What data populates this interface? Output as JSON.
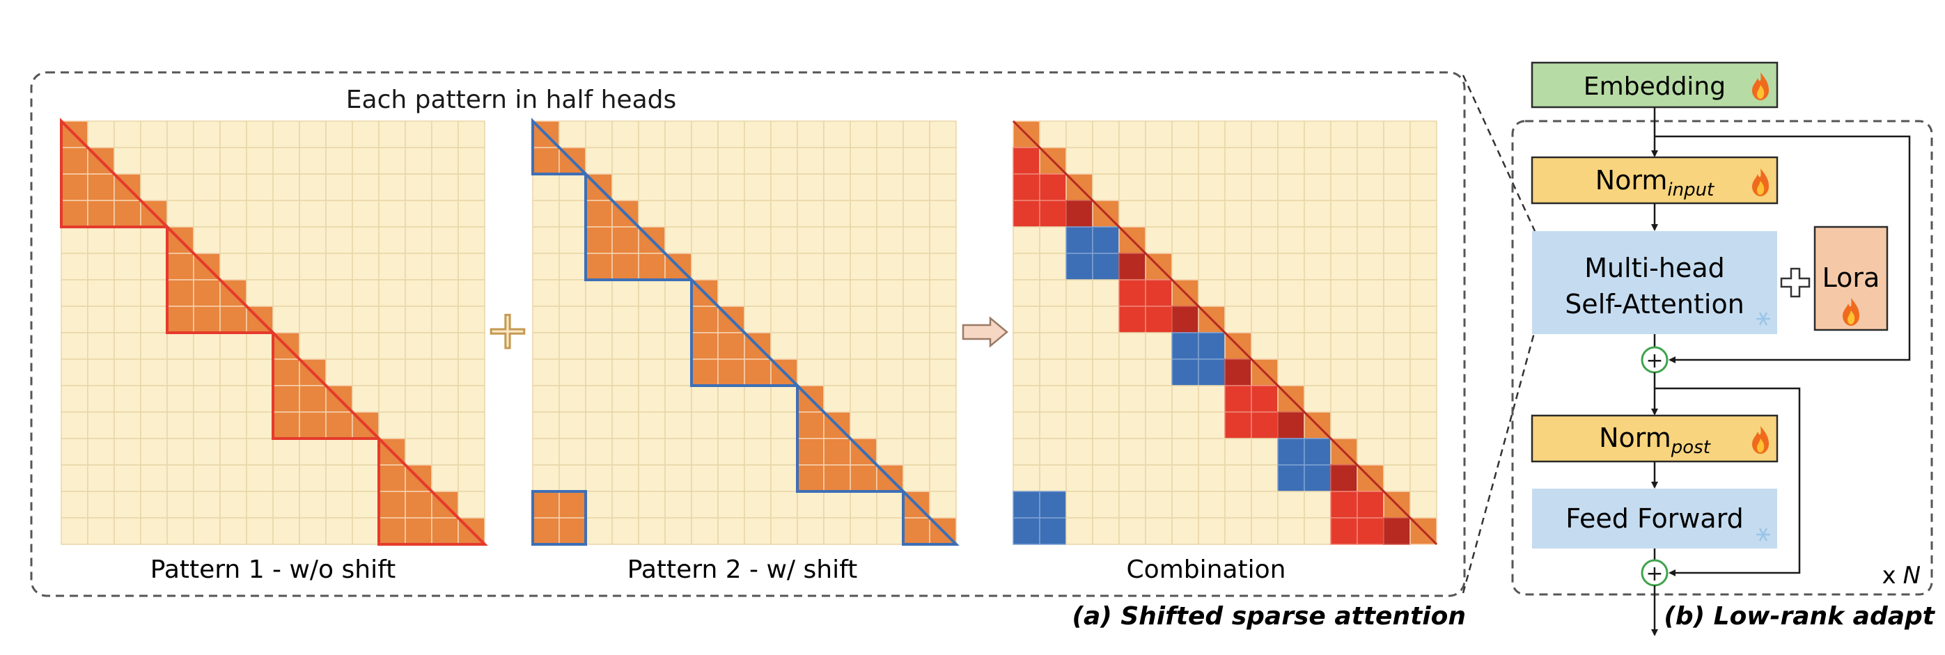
{
  "panel_a": {
    "heading": "Each pattern in half heads",
    "caption": "(a) Shifted sparse attention",
    "grids": [
      {
        "name": "pattern-1",
        "label": "Pattern 1 - w/o shift",
        "size": 16,
        "group": 4,
        "shift": false
      },
      {
        "name": "pattern-2",
        "label": "Pattern 2 - w/ shift",
        "size": 16,
        "group": 4,
        "shift": true
      },
      {
        "name": "combination",
        "label": "Combination",
        "size": 16,
        "group": 4,
        "combined": true
      }
    ],
    "plus_symbol": "+",
    "arrow_symbol": "⇨"
  },
  "panel_b": {
    "caption": "(b) Low-rank adapt",
    "embedding": "Embedding",
    "norm_input": {
      "base": "Norm",
      "sub": "input"
    },
    "attention": {
      "line1": "Multi-head",
      "line2": "Self-Attention"
    },
    "lora": "Lora",
    "norm_post": {
      "base": "Norm",
      "sub": "post"
    },
    "feed_forward": "Feed Forward",
    "repeat": {
      "prefix": "x",
      "n": "N"
    },
    "add_symbol": "+",
    "trainable_icon": "flame-icon",
    "frozen_icon": "snowflake-icon"
  },
  "colors": {
    "cell_bg": "#FCEFCB",
    "cell_grid": "#E8D6A8",
    "attend_orange": "#E8853F",
    "attend_grid": "#F6D3B0",
    "pattern1_border": "#E43B2C",
    "pattern2_border": "#3D6FB6",
    "combo_red": "#E43B2C",
    "combo_darkred": "#B62A22",
    "combo_blue": "#3D6FB6",
    "embedding_fill": "#B6DBA4",
    "norm_fill": "#F8D47E",
    "attention_fill": "#C5DCF0",
    "lora_fill": "#F5C9A8",
    "flame": "#F06A1E"
  }
}
